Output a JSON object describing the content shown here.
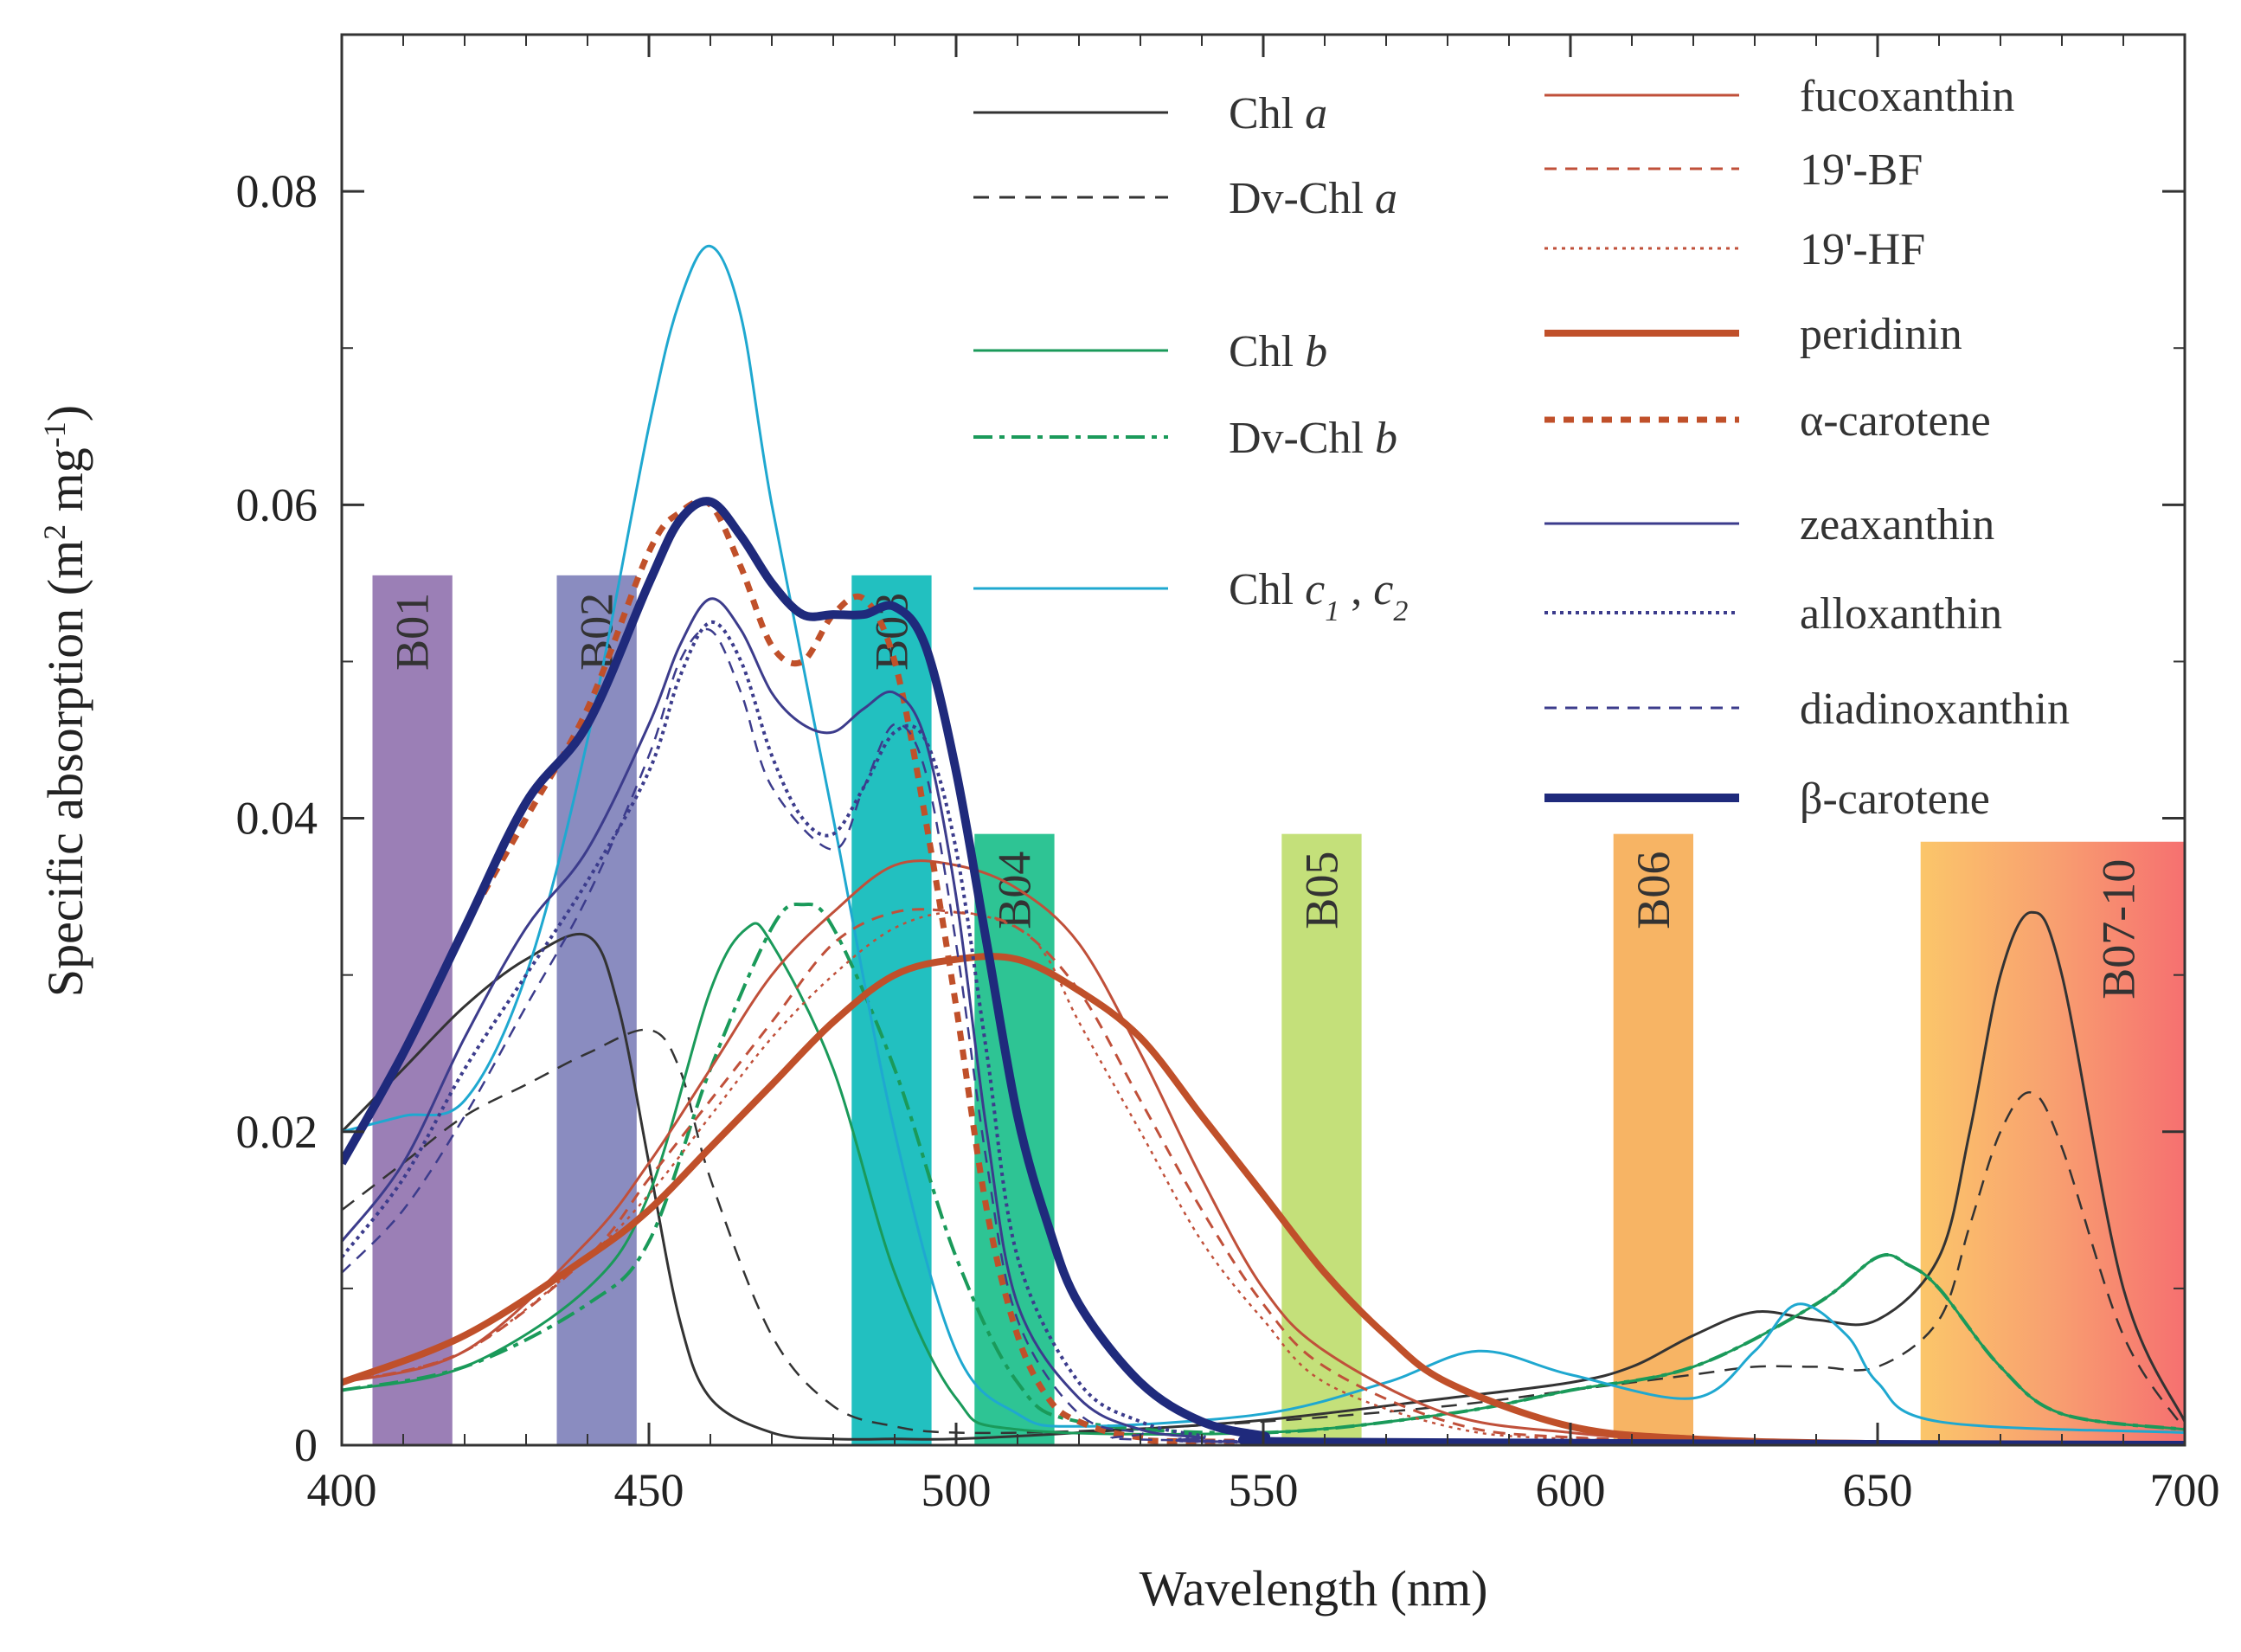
{
  "chart_data": {
    "type": "line",
    "title": "",
    "xlabel": "Wavelength (nm)",
    "ylabel_parts": [
      "Specific absorption (m",
      "2",
      " mg",
      "-1",
      ")"
    ],
    "xlim": [
      400,
      700
    ],
    "ylim": [
      0,
      0.09
    ],
    "xticks": [
      400,
      450,
      500,
      550,
      600,
      650,
      700
    ],
    "xtick_labels": [
      "400",
      "450",
      "500",
      "550",
      "600",
      "650",
      "700"
    ],
    "yticks": [
      0,
      0.02,
      0.04,
      0.06,
      0.08
    ],
    "ytick_labels": [
      "0",
      "0.02",
      "0.04",
      "0.06",
      "0.08"
    ],
    "bands": [
      {
        "label": "B01",
        "x0": 405,
        "x1": 418,
        "top": 0.0555,
        "color": "#9b7fb6"
      },
      {
        "label": "B02",
        "x0": 435,
        "x1": 448,
        "top": 0.0555,
        "color": "#8a8cc0"
      },
      {
        "label": "B03",
        "x0": 483,
        "x1": 496,
        "top": 0.0555,
        "color": "#22c0c0"
      },
      {
        "label": "B04",
        "x0": 503,
        "x1": 516,
        "top": 0.039,
        "color": "#2ec494"
      },
      {
        "label": "B05",
        "x0": 553,
        "x1": 566,
        "top": 0.039,
        "color": "#c4e07a"
      },
      {
        "label": "B06",
        "x0": 607,
        "x1": 620,
        "top": 0.039,
        "color": "#f7b464"
      },
      {
        "label": "B07-10",
        "x0": 657,
        "x1": 700,
        "top": 0.0385,
        "color": "gradient"
      }
    ],
    "series": [
      {
        "name": "Chl a",
        "label_main": "Chl ",
        "label_italic": "a",
        "color": "#333333",
        "dash": "",
        "width": 3,
        "x": [
          400,
          410,
          420,
          430,
          440,
          445,
          450,
          455,
          460,
          470,
          480,
          490,
          500,
          520,
          550,
          580,
          600,
          610,
          620,
          630,
          640,
          650,
          660,
          665,
          670,
          675,
          680,
          690,
          700
        ],
        "y": [
          0.02,
          0.024,
          0.028,
          0.031,
          0.0325,
          0.028,
          0.018,
          0.008,
          0.003,
          0.0008,
          0.0004,
          0.0004,
          0.0004,
          0.0008,
          0.0016,
          0.003,
          0.004,
          0.005,
          0.007,
          0.0085,
          0.008,
          0.008,
          0.012,
          0.02,
          0.03,
          0.034,
          0.03,
          0.01,
          0.0015
        ]
      },
      {
        "name": "Dv-Chl a",
        "label_main": "Dv-Chl ",
        "label_italic": "a",
        "color": "#333333",
        "dash": "18,12",
        "width": 2.5,
        "x": [
          400,
          410,
          420,
          430,
          440,
          450,
          455,
          460,
          470,
          480,
          490,
          500,
          520,
          550,
          580,
          600,
          620,
          630,
          640,
          650,
          660,
          665,
          670,
          675,
          680,
          690,
          700
        ],
        "y": [
          0.015,
          0.018,
          0.021,
          0.023,
          0.025,
          0.0265,
          0.024,
          0.017,
          0.007,
          0.0025,
          0.0012,
          0.0008,
          0.0009,
          0.0015,
          0.0025,
          0.0035,
          0.0045,
          0.005,
          0.005,
          0.005,
          0.008,
          0.014,
          0.02,
          0.0225,
          0.019,
          0.007,
          0.001
        ]
      },
      {
        "name": "Chl b",
        "label_main": "Chl ",
        "label_italic": "b",
        "color": "#1a9a5a",
        "dash": "",
        "width": 3,
        "x": [
          400,
          420,
          440,
          450,
          460,
          466,
          470,
          480,
          490,
          500,
          510,
          550,
          580,
          600,
          620,
          640,
          650,
          655,
          660,
          670,
          680,
          700
        ],
        "y": [
          0.0035,
          0.005,
          0.01,
          0.016,
          0.029,
          0.033,
          0.032,
          0.024,
          0.011,
          0.003,
          0.001,
          0.0008,
          0.002,
          0.0035,
          0.005,
          0.009,
          0.012,
          0.0115,
          0.01,
          0.005,
          0.002,
          0.001
        ]
      },
      {
        "name": "Dv-Chl b",
        "label_main": "Dv-Chl ",
        "label_italic": "b",
        "color": "#1a9a5a",
        "dash": "22,8,6,8",
        "width": 4,
        "x": [
          400,
          420,
          440,
          450,
          460,
          470,
          475,
          480,
          490,
          500,
          510,
          520,
          550,
          580,
          600,
          620,
          640,
          650,
          655,
          660,
          670,
          680,
          700
        ],
        "y": [
          0.0035,
          0.005,
          0.009,
          0.013,
          0.024,
          0.033,
          0.0345,
          0.033,
          0.024,
          0.012,
          0.004,
          0.0015,
          0.0008,
          0.002,
          0.0035,
          0.005,
          0.009,
          0.012,
          0.0115,
          0.01,
          0.005,
          0.002,
          0.001
        ]
      },
      {
        "name": "Chl c1, c2",
        "label_main": "Chl ",
        "label_italic": "c",
        "label_sub1": "1",
        "label_mid": " , ",
        "label_italic2": "c",
        "label_sub2": "2",
        "color": "#1fa8d0",
        "dash": "",
        "width": 3,
        "x": [
          400,
          410,
          420,
          430,
          440,
          450,
          455,
          460,
          465,
          470,
          480,
          490,
          500,
          510,
          520,
          550,
          570,
          585,
          600,
          620,
          630,
          637,
          645,
          650,
          660,
          700
        ],
        "y": [
          0.02,
          0.021,
          0.022,
          0.03,
          0.045,
          0.065,
          0.073,
          0.0765,
          0.072,
          0.06,
          0.04,
          0.02,
          0.006,
          0.002,
          0.0012,
          0.002,
          0.004,
          0.006,
          0.0045,
          0.003,
          0.006,
          0.009,
          0.007,
          0.004,
          0.0015,
          0.0008
        ]
      },
      {
        "name": "fucoxanthin",
        "label_main": "fucoxanthin",
        "color": "#c0503a",
        "dash": "",
        "width": 3,
        "x": [
          400,
          420,
          440,
          450,
          460,
          470,
          480,
          490,
          500,
          510,
          520,
          530,
          540,
          550,
          560,
          580,
          600,
          620,
          650,
          700
        ],
        "y": [
          0.004,
          0.006,
          0.013,
          0.018,
          0.024,
          0.03,
          0.034,
          0.037,
          0.037,
          0.0355,
          0.032,
          0.025,
          0.017,
          0.01,
          0.006,
          0.002,
          0.0008,
          0.0003,
          0.0001,
          0
        ]
      },
      {
        "name": "19'-BF",
        "label_main": "19'-BF",
        "color": "#c0503a",
        "dash": "14,10",
        "width": 3,
        "x": [
          400,
          420,
          440,
          450,
          460,
          470,
          480,
          490,
          500,
          510,
          520,
          530,
          540,
          550,
          560,
          580,
          600,
          650,
          700
        ],
        "y": [
          0.004,
          0.006,
          0.012,
          0.017,
          0.022,
          0.027,
          0.032,
          0.034,
          0.034,
          0.033,
          0.029,
          0.022,
          0.015,
          0.009,
          0.005,
          0.0015,
          0.0005,
          0.0001,
          0
        ]
      },
      {
        "name": "19'-HF",
        "label_main": "19'-HF",
        "color": "#c0503a",
        "dash": "4,6",
        "width": 2.5,
        "x": [
          400,
          420,
          440,
          450,
          460,
          470,
          480,
          490,
          500,
          510,
          515,
          520,
          530,
          540,
          550,
          560,
          580,
          600,
          650,
          700
        ],
        "y": [
          0.004,
          0.006,
          0.012,
          0.016,
          0.021,
          0.026,
          0.03,
          0.033,
          0.034,
          0.033,
          0.031,
          0.027,
          0.02,
          0.013,
          0.008,
          0.004,
          0.0012,
          0.0004,
          0.0001,
          0
        ]
      },
      {
        "name": "peridinin",
        "label_main": "peridinin",
        "color": "#c0502a",
        "dash": "",
        "width": 8,
        "x": [
          400,
          420,
          440,
          450,
          460,
          470,
          480,
          490,
          500,
          510,
          520,
          530,
          540,
          550,
          560,
          570,
          580,
          600,
          620,
          650,
          700
        ],
        "y": [
          0.004,
          0.007,
          0.012,
          0.015,
          0.019,
          0.023,
          0.027,
          0.03,
          0.031,
          0.031,
          0.029,
          0.026,
          0.021,
          0.016,
          0.011,
          0.007,
          0.004,
          0.0012,
          0.0004,
          0.0001,
          0
        ]
      },
      {
        "name": "α-carotene",
        "label_main": "α-carotene",
        "color": "#c0502a",
        "dash": "12,10",
        "width": 7,
        "x": [
          400,
          410,
          420,
          430,
          440,
          450,
          455,
          460,
          465,
          470,
          475,
          480,
          485,
          490,
          495,
          500,
          505,
          510,
          515,
          520,
          530,
          550,
          700
        ],
        "y": [
          0.018,
          0.025,
          0.033,
          0.04,
          0.047,
          0.057,
          0.0595,
          0.06,
          0.056,
          0.051,
          0.05,
          0.053,
          0.054,
          0.05,
          0.04,
          0.028,
          0.015,
          0.007,
          0.003,
          0.0015,
          0.0005,
          0.0002,
          0
        ]
      },
      {
        "name": "zeaxanthin",
        "label_main": "zeaxanthin",
        "color": "#3c3c8c",
        "dash": "",
        "width": 3,
        "x": [
          400,
          410,
          420,
          430,
          440,
          450,
          455,
          460,
          465,
          470,
          475,
          480,
          485,
          490,
          495,
          500,
          505,
          510,
          520,
          530,
          540,
          550,
          700
        ],
        "y": [
          0.013,
          0.018,
          0.026,
          0.033,
          0.038,
          0.046,
          0.051,
          0.054,
          0.052,
          0.048,
          0.046,
          0.0455,
          0.047,
          0.048,
          0.045,
          0.035,
          0.02,
          0.009,
          0.003,
          0.001,
          0.0005,
          0.0002,
          0
        ]
      },
      {
        "name": "alloxanthin",
        "label_main": "alloxanthin",
        "color": "#3c3c8c",
        "dash": "4,5",
        "width": 4,
        "x": [
          400,
          410,
          420,
          430,
          440,
          450,
          455,
          460,
          465,
          470,
          475,
          480,
          485,
          490,
          495,
          500,
          505,
          510,
          520,
          530,
          540,
          550,
          700
        ],
        "y": [
          0.012,
          0.017,
          0.024,
          0.03,
          0.036,
          0.043,
          0.049,
          0.0525,
          0.05,
          0.044,
          0.04,
          0.039,
          0.042,
          0.0455,
          0.045,
          0.038,
          0.025,
          0.012,
          0.004,
          0.0015,
          0.0006,
          0.0002,
          0
        ]
      },
      {
        "name": "diadinoxanthin",
        "label_main": "diadinoxanthin",
        "color": "#3c3c8c",
        "dash": "14,10",
        "width": 2.5,
        "x": [
          400,
          410,
          420,
          430,
          440,
          450,
          455,
          460,
          465,
          470,
          480,
          485,
          490,
          495,
          500,
          505,
          510,
          520,
          530,
          540,
          700
        ],
        "y": [
          0.011,
          0.015,
          0.021,
          0.028,
          0.035,
          0.044,
          0.05,
          0.052,
          0.048,
          0.042,
          0.038,
          0.042,
          0.046,
          0.043,
          0.032,
          0.018,
          0.008,
          0.002,
          0.0008,
          0.0003,
          0
        ]
      },
      {
        "name": "β-carotene",
        "label_main": "β-carotene",
        "color": "#1f2a7c",
        "dash": "",
        "width": 10,
        "x": [
          400,
          410,
          420,
          430,
          440,
          450,
          455,
          460,
          465,
          470,
          475,
          480,
          485,
          490,
          495,
          500,
          505,
          510,
          515,
          520,
          530,
          540,
          550,
          560,
          700
        ],
        "y": [
          0.018,
          0.025,
          0.033,
          0.041,
          0.046,
          0.055,
          0.059,
          0.0602,
          0.058,
          0.055,
          0.053,
          0.053,
          0.053,
          0.0535,
          0.051,
          0.043,
          0.032,
          0.021,
          0.014,
          0.009,
          0.004,
          0.0015,
          0.0006,
          0.0002,
          0
        ]
      }
    ]
  }
}
